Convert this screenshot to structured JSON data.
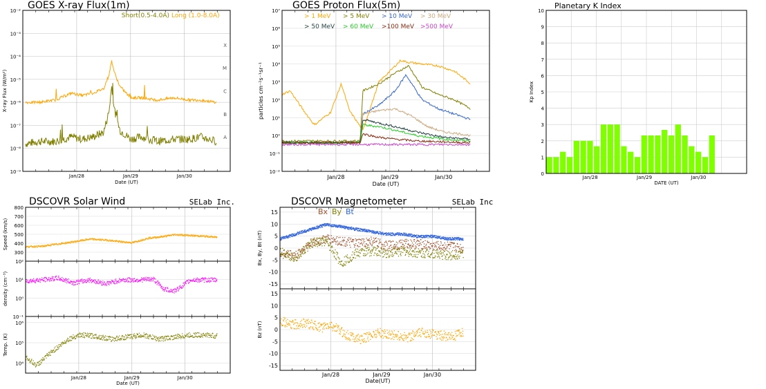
{
  "chart_data": [
    {
      "type": "line",
      "title": "GOES X-ray Flux(1m)",
      "xlabel": "Date (UT)",
      "ylabel": "X-ray Flux (W/m²)",
      "ylog": true,
      "ylim_exp": [
        -9,
        -2
      ],
      "y_tick_labels": [
        "10⁻⁹",
        "10⁻⁸",
        "10⁻⁷",
        "10⁻⁶",
        "10⁻⁵",
        "10⁻⁴",
        "10⁻³",
        "10⁻²"
      ],
      "class_labels": [
        "A",
        "B",
        "C",
        "M",
        "X"
      ],
      "x_tick_labels": [
        "Jan/28",
        "Jan/29",
        "Jan/30"
      ],
      "xlim_days": [
        27.0,
        30.85
      ],
      "legend": {
        "placement": "top-right"
      },
      "series": [
        {
          "name": "Short(0.5-4.0A)",
          "color": "#808000",
          "x": [
            27.05,
            27.3,
            27.6,
            27.9,
            28.1,
            28.3,
            28.5,
            28.6,
            28.65,
            28.7,
            28.8,
            29.0,
            29.2,
            29.5,
            29.8,
            30.1,
            30.3,
            30.6
          ],
          "log_y": [
            -7.8,
            -7.7,
            -7.7,
            -7.5,
            -7.6,
            -7.5,
            -7.3,
            -6.4,
            -5.3,
            -6.3,
            -7.2,
            -7.6,
            -7.5,
            -7.7,
            -7.6,
            -7.6,
            -7.5,
            -7.7
          ]
        },
        {
          "name": "Long (1.0-8.0A)",
          "color": "#ffa500",
          "x": [
            27.05,
            27.3,
            27.6,
            27.9,
            28.1,
            28.3,
            28.5,
            28.6,
            28.65,
            28.7,
            28.8,
            29.0,
            29.2,
            29.5,
            29.8,
            30.1,
            30.3,
            30.6
          ],
          "log_y": [
            -6.0,
            -6.0,
            -5.9,
            -5.6,
            -5.7,
            -5.6,
            -5.4,
            -4.8,
            -4.2,
            -4.7,
            -5.3,
            -5.8,
            -5.8,
            -5.9,
            -5.8,
            -5.9,
            -5.9,
            -6.0
          ]
        }
      ]
    },
    {
      "type": "line",
      "title": "GOES Proton Flux(5m)",
      "xlabel": "Date (UT)",
      "ylabel": "particles cm⁻²s⁻¹sr⁻¹",
      "ylog": true,
      "ylim_exp": [
        -2,
        7
      ],
      "y_tick_labels": [
        "10⁻²",
        "10⁻¹",
        "10⁰",
        "10¹",
        "10²",
        "10³",
        "10⁴",
        "10⁵",
        "10⁶",
        "10⁷"
      ],
      "x_tick_labels": [
        "Jan/28",
        "Jan/29",
        "Jan/30"
      ],
      "xlim_days": [
        27.0,
        30.85
      ],
      "legend": {
        "placement": "top",
        "entries": [
          "> 1 MeV",
          "> 5 MeV",
          "> 10 MeV",
          "> 30 MeV",
          "> 50 MeV",
          "> 60 MeV",
          ">100 MeV",
          ">500 MeV"
        ]
      },
      "series": [
        {
          "name": "> 1 MeV",
          "color": "#ffa500",
          "x": [
            27.0,
            27.15,
            27.4,
            27.6,
            27.9,
            28.1,
            28.25,
            28.5,
            28.8,
            29.0,
            29.2,
            29.35,
            29.6,
            29.9,
            30.2,
            30.5
          ],
          "log_y": [
            2.3,
            2.5,
            1.4,
            0.6,
            1.3,
            2.9,
            1.4,
            0.3,
            3.0,
            3.6,
            4.2,
            4.1,
            4.0,
            3.9,
            3.6,
            2.9
          ]
        },
        {
          "name": "> 5 MeV",
          "color": "#808000",
          "x": [
            27.0,
            28.45,
            28.5,
            28.8,
            29.1,
            29.35,
            29.6,
            29.9,
            30.2,
            30.5
          ],
          "log_y": [
            -0.3,
            -0.3,
            2.5,
            2.9,
            3.5,
            3.9,
            2.7,
            2.3,
            2.0,
            1.5
          ]
        },
        {
          "name": "> 10 MeV",
          "color": "#3366cc",
          "x": [
            27.0,
            28.45,
            28.5,
            28.8,
            29.1,
            29.3,
            29.6,
            29.9,
            30.2,
            30.5
          ],
          "log_y": [
            -0.4,
            -0.4,
            1.2,
            1.7,
            2.5,
            3.4,
            2.0,
            1.5,
            1.2,
            0.9
          ]
        },
        {
          "name": "> 30 MeV",
          "color": "#cca87c",
          "x": [
            27.0,
            28.45,
            28.5,
            28.8,
            29.1,
            29.4,
            29.7,
            30.0,
            30.3,
            30.5
          ],
          "log_y": [
            -0.4,
            -0.4,
            1.2,
            1.4,
            1.5,
            1.1,
            0.5,
            0.2,
            0.1,
            0.0
          ]
        },
        {
          "name": "> 50 MeV",
          "color": "#1f3f3f",
          "x": [
            27.0,
            28.45,
            28.5,
            28.8,
            29.1,
            29.5,
            30.0,
            30.5
          ],
          "log_y": [
            -0.4,
            -0.4,
            0.9,
            0.7,
            0.5,
            0.2,
            -0.1,
            -0.2
          ]
        },
        {
          "name": "> 60 MeV",
          "color": "#22cc22",
          "x": [
            27.0,
            28.45,
            28.5,
            28.8,
            29.1,
            29.5,
            30.0,
            30.5
          ],
          "log_y": [
            -0.4,
            -0.4,
            0.6,
            0.5,
            0.3,
            0.0,
            -0.2,
            -0.3
          ]
        },
        {
          "name": ">100 MeV",
          "color": "#8b2a10",
          "x": [
            27.0,
            28.45,
            28.5,
            28.8,
            29.1,
            29.5,
            30.0,
            30.5
          ],
          "log_y": [
            -0.4,
            -0.4,
            0.1,
            -0.1,
            -0.2,
            -0.3,
            -0.35,
            -0.4
          ]
        },
        {
          "name": ">500 MeV",
          "color": "#cc44cc",
          "x": [
            27.0,
            30.5
          ],
          "log_y": [
            -0.5,
            -0.5
          ]
        }
      ]
    },
    {
      "type": "bar",
      "title": "Planetary K Index",
      "xlabel": "DATE (UT)",
      "ylabel": "Kp Index",
      "ylim": [
        0,
        10
      ],
      "y_tick_labels": [
        "0",
        "1",
        "2",
        "3",
        "4",
        "5",
        "6",
        "7",
        "8",
        "9",
        "10"
      ],
      "x_tick_labels": [
        "Jan/28",
        "Jan/29",
        "Jan/30"
      ],
      "values": [
        1.0,
        1.0,
        1.33,
        1.0,
        2.0,
        2.0,
        2.0,
        1.67,
        3.0,
        3.0,
        3.0,
        1.67,
        1.33,
        1.0,
        2.33,
        2.33,
        2.33,
        2.67,
        2.33,
        3.0,
        2.33,
        1.67,
        1.33,
        1.0,
        2.33
      ],
      "bar_color": "#7fff00"
    },
    {
      "type": "scatter",
      "title": "DSCOVR Solar Wind",
      "brand": "SELab Inc.",
      "xlabel": "Date (UT)",
      "x_tick_labels": [
        "Jan/28",
        "Jan/29",
        "Jan/30"
      ],
      "subplots": [
        {
          "ylabel": "Speed (km/s)",
          "ylim": [
            200,
            800
          ],
          "y_tick_labels": [
            "300",
            "400",
            "500",
            "600",
            "700",
            "800"
          ],
          "color": "#ffa500",
          "x": [
            27.0,
            27.3,
            27.6,
            27.9,
            28.2,
            28.5,
            28.8,
            29.0,
            29.3,
            29.6,
            29.8,
            30.1,
            30.4,
            30.6
          ],
          "y": [
            365,
            370,
            395,
            420,
            450,
            440,
            420,
            410,
            460,
            480,
            500,
            490,
            480,
            470
          ]
        },
        {
          "ylabel": "density (cm⁻³)",
          "ylog": true,
          "ylim_exp": [
            -1,
            2
          ],
          "y_tick_labels": [
            "10⁻¹",
            "10⁰",
            "10¹",
            "10²"
          ],
          "color": "#ff00ff",
          "x": [
            27.0,
            27.3,
            27.6,
            27.9,
            28.2,
            28.5,
            28.8,
            29.1,
            29.4,
            29.6,
            29.8,
            30.1,
            30.4,
            30.6
          ],
          "log_y": [
            0.95,
            1.0,
            1.1,
            0.85,
            1.0,
            0.8,
            1.0,
            1.0,
            1.05,
            0.5,
            0.4,
            1.0,
            1.0,
            1.0
          ]
        },
        {
          "ylabel": "Temp. (K)",
          "ylog": true,
          "ylim_exp": [
            3.5,
            6.3
          ],
          "y_tick_labels": [
            "10⁴",
            "10⁵",
            "10⁶"
          ],
          "color": "#808000",
          "x": [
            27.0,
            27.2,
            27.5,
            27.8,
            28.0,
            28.3,
            28.6,
            28.9,
            29.2,
            29.5,
            29.8,
            30.1,
            30.4,
            30.6
          ],
          "log_y": [
            4.3,
            3.9,
            4.6,
            5.2,
            5.4,
            5.35,
            5.2,
            5.3,
            5.4,
            5.2,
            5.3,
            5.4,
            5.4,
            5.35
          ]
        }
      ]
    },
    {
      "type": "scatter",
      "title": "DSCOVR Magnetometer",
      "brand": "SELab Inc.",
      "xlabel": "Date(UT)",
      "x_tick_labels": [
        "Jan/28",
        "Jan/29",
        "Jan/30"
      ],
      "legend": {
        "placement": "top",
        "entries": [
          "Bx",
          "By",
          "Bt"
        ]
      },
      "subplots": [
        {
          "ylabel": "Bx, By, Bt (nT)",
          "ylim": [
            -17,
            17
          ],
          "y_tick_labels": [
            "-15",
            "-10",
            "-5",
            "0",
            "5",
            "10",
            "15"
          ],
          "series": [
            {
              "name": "Bx",
              "color": "#a0522d",
              "x": [
                27.0,
                27.3,
                27.6,
                27.9,
                28.2,
                28.5,
                28.8,
                29.1,
                29.4,
                29.7,
                30.0,
                30.3,
                30.6
              ],
              "y": [
                -2,
                -3,
                2,
                4,
                3,
                2,
                3,
                1,
                2,
                2,
                1,
                1,
                0
              ]
            },
            {
              "name": "By",
              "color": "#808000",
              "x": [
                27.0,
                27.3,
                27.6,
                27.9,
                28.2,
                28.5,
                28.8,
                29.1,
                29.4,
                29.7,
                30.0,
                30.3,
                30.6
              ],
              "y": [
                -1,
                -4,
                2,
                3,
                -6,
                -2,
                -1,
                -2,
                -1,
                -2,
                -2,
                -3,
                -2
              ]
            },
            {
              "name": "Bt",
              "color": "#3366dd",
              "x": [
                27.0,
                27.3,
                27.6,
                27.9,
                28.2,
                28.5,
                28.8,
                29.1,
                29.4,
                29.7,
                30.0,
                30.3,
                30.6
              ],
              "y": [
                4,
                6,
                8,
                10,
                9,
                8,
                7,
                6,
                6,
                5,
                5,
                4,
                4
              ]
            }
          ]
        },
        {
          "ylabel": "Bz (nT)",
          "ylim": [
            -17,
            17
          ],
          "y_tick_labels": [
            "-15",
            "-10",
            "-5",
            "0",
            "5",
            "10",
            "15"
          ],
          "color": "#ffa500",
          "x": [
            27.0,
            27.2,
            27.5,
            27.8,
            28.0,
            28.3,
            28.6,
            28.9,
            29.2,
            29.5,
            29.8,
            30.1,
            30.4,
            30.6
          ],
          "y": [
            4,
            2,
            3,
            1,
            2,
            -2,
            -4,
            -1,
            -2,
            -3,
            -1,
            -2,
            -3,
            -1
          ]
        }
      ]
    }
  ]
}
